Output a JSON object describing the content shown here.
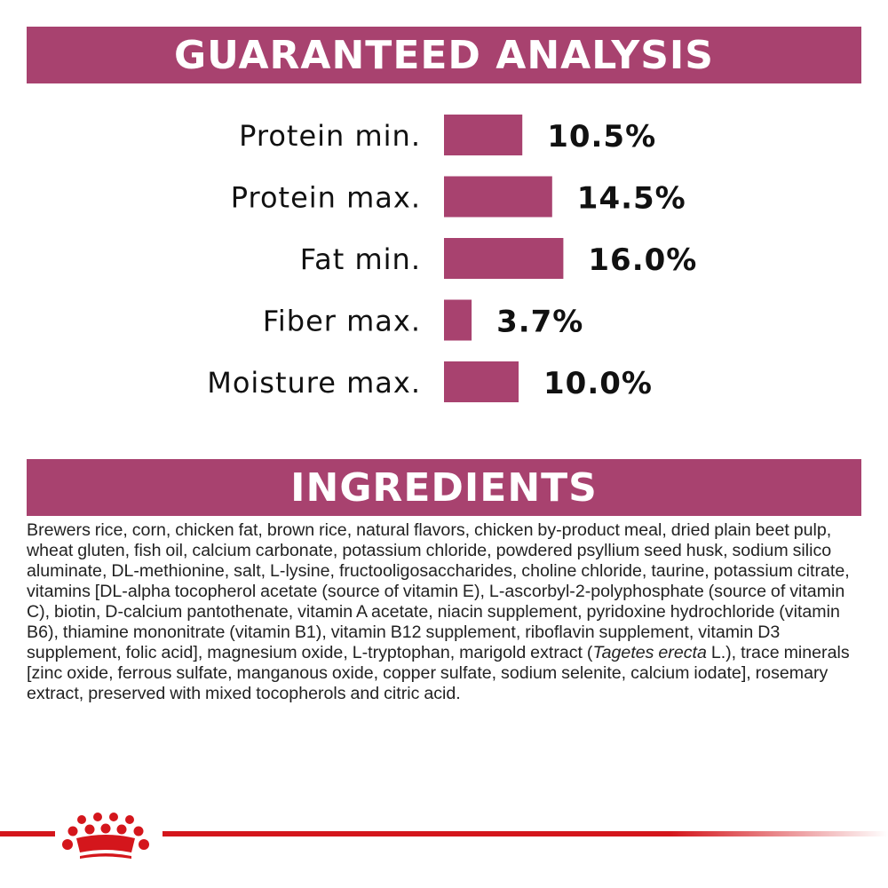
{
  "sections": {
    "analysis_title": "GUARANTEED ANALYSIS",
    "ingredients_title": "INGREDIENTS"
  },
  "chart_data": {
    "type": "bar",
    "orientation": "horizontal",
    "categories": [
      "Protein min.",
      "Protein max.",
      "Fat min.",
      "Fiber max.",
      "Moisture max."
    ],
    "values": [
      10.5,
      14.5,
      16.0,
      3.7,
      10.0
    ],
    "value_labels": [
      "10.5%",
      "14.5%",
      "16.0%",
      "3.7%",
      "10.0%"
    ],
    "unit": "%",
    "bar_color": "#a8426f",
    "grid": false,
    "legend": "none"
  },
  "ingredients": {
    "text_before": "Brewers rice, corn, chicken fat, brown rice, natural flavors, chicken by-product meal, dried plain beet pulp, wheat gluten, fish oil, calcium carbonate, potassium chloride, powdered psyllium seed husk, sodium silico aluminate, DL-methionine, salt, L-lysine, fructooligosaccharides, choline chloride, taurine, potassium citrate, vitamins [DL-alpha tocopherol acetate (source of vitamin E), L-ascorbyl-2-polyphosphate (source of vitamin C), biotin, D-calcium pantothenate, vitamin A acetate, niacin supplement, pyridoxine hydrochloride (vitamin B6), thiamine mononitrate (vitamin B1), vitamin B12 supplement, riboflavin supplement, vitamin D3 supplement, folic acid], magnesium oxide, L-tryptophan, marigold extract (",
    "text_italic": "Tagetes erecta",
    "text_after": " L.), trace minerals [zinc oxide, ferrous sulfate, manganous oxide, copper sulfate, sodium selenite, calcium iodate], rosemary extract, preserved with mixed tocopherols and citric acid."
  },
  "brand": {
    "logo": "crown-icon",
    "accent_color": "#d4161c"
  }
}
